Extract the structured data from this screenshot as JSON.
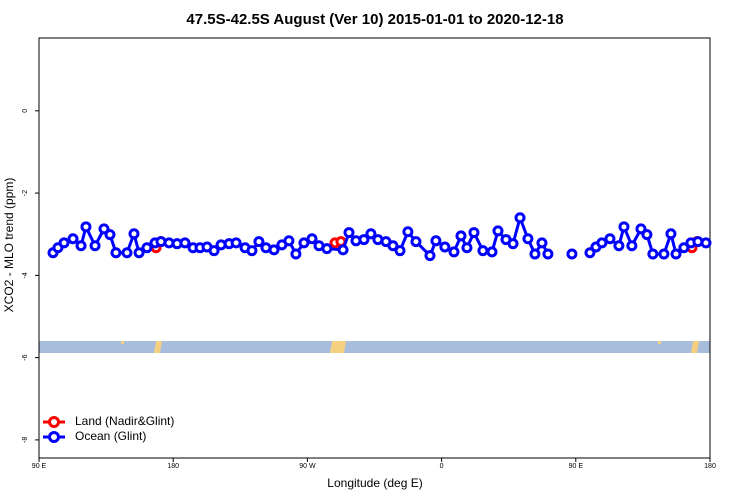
{
  "chart_data": {
    "type": "line",
    "title": "47.5S-42.5S August (Ver 10)   2015-01-01 to 2020-12-18",
    "xlabel": "Longitude (deg E)",
    "ylabel": "XCO2 - MLO trend (ppm)",
    "xlim": [
      90,
      540
    ],
    "ylim": [
      -8.44,
      1.77
    ],
    "xticks": [
      {
        "value": 90,
        "label": "90 E"
      },
      180,
      {
        "value": 270,
        "label": "90 W"
      },
      {
        "value": 360,
        "label": "0"
      },
      {
        "value": 450,
        "label": "90 E"
      },
      {
        "value": 540,
        "label": "180"
      }
    ],
    "yticks": [
      0,
      -2,
      -4,
      -6,
      -8
    ],
    "legend": "bottom-left",
    "series": [
      {
        "name": "Land (Nadir&Glint)",
        "color": "#ff0000",
        "x": [
          168.5,
          171.8,
          null,
          288.5,
          292.5,
          null,
          527.9,
          531.3
        ],
        "values": [
          -3.33,
          -3.18,
          null,
          -3.21,
          -3.18,
          null,
          -3.33,
          -3.18
        ]
      },
      {
        "name": "Ocean (Glint)",
        "color": "#0000ff",
        "x": [
          99.4,
          102.7,
          106.8,
          112.8,
          118.2,
          121.5,
          127.6,
          133.6,
          137.6,
          141.6,
          149.0,
          153.7,
          157.1,
          162.4,
          167.8,
          171.8,
          177.2,
          182.6,
          187.9,
          193.3,
          198.0,
          202.7,
          207.4,
          212.1,
          217.5,
          222.2,
          228.2,
          232.8,
          237.5,
          242.2,
          247.6,
          252.9,
          257.6,
          262.3,
          267.7,
          273.1,
          277.8,
          283.1,
          293.9,
          297.9,
          302.6,
          307.9,
          312.6,
          317.3,
          322.7,
          327.4,
          332.1,
          337.4,
          342.8,
          352.2,
          356.2,
          362.2,
          368.3,
          373.0,
          377.0,
          381.7,
          387.7,
          393.8,
          397.8,
          403.2,
          407.9,
          412.6,
          417.9,
          422.6,
          427.3,
          431.3,
          null,
          447.4,
          null,
          459.5,
          463.5,
          467.5,
          472.9,
          478.9,
          482.3,
          487.6,
          493.7,
          497.7,
          501.7,
          509.1,
          513.8,
          517.2,
          522.5,
          527.2,
          531.9,
          537.3
        ],
        "values": [
          -3.45,
          -3.33,
          -3.21,
          -3.11,
          -3.28,
          -2.82,
          -3.28,
          -2.87,
          -3.01,
          -3.45,
          -3.45,
          -2.99,
          -3.45,
          -3.33,
          -3.21,
          -3.18,
          -3.21,
          -3.23,
          -3.21,
          -3.33,
          -3.33,
          -3.31,
          -3.4,
          -3.26,
          -3.23,
          -3.21,
          -3.33,
          -3.4,
          -3.18,
          -3.33,
          -3.38,
          -3.26,
          -3.16,
          -3.48,
          -3.21,
          -3.11,
          -3.28,
          -3.35,
          -3.38,
          -2.96,
          -3.16,
          -3.13,
          -2.99,
          -3.13,
          -3.18,
          -3.28,
          -3.4,
          -2.94,
          -3.18,
          -3.52,
          -3.16,
          -3.31,
          -3.43,
          -3.04,
          -3.33,
          -2.96,
          -3.4,
          -3.43,
          -2.92,
          -3.13,
          -3.23,
          -2.6,
          -3.11,
          -3.48,
          -3.21,
          -3.48,
          null,
          -3.48,
          null,
          -3.45,
          -3.31,
          -3.21,
          -3.11,
          -3.28,
          -2.82,
          -3.28,
          -2.87,
          -3.01,
          -3.48,
          -3.48,
          -2.99,
          -3.48,
          -3.33,
          -3.21,
          -3.18,
          -3.21
        ]
      }
    ]
  }
}
